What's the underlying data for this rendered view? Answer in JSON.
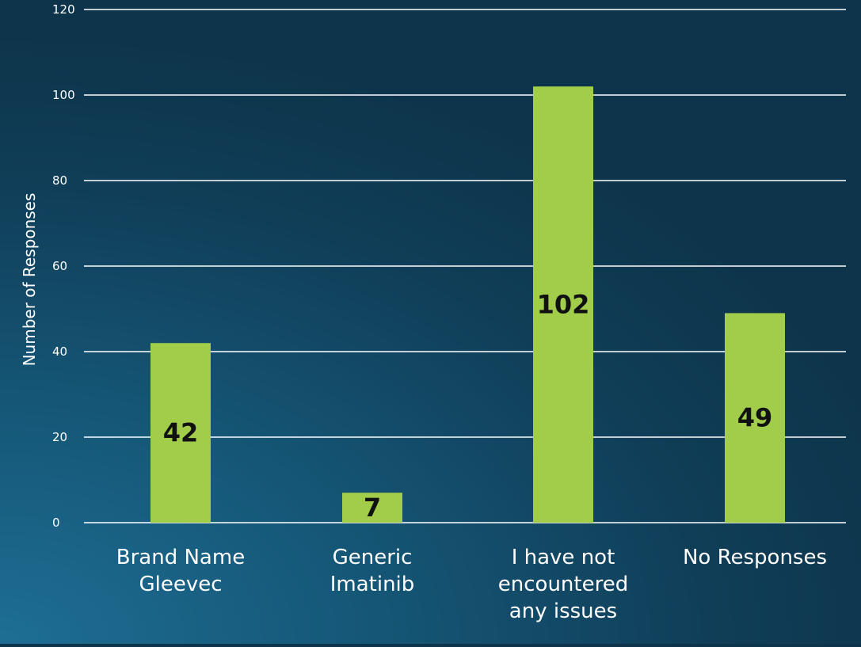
{
  "chart_data": {
    "type": "bar",
    "categories": [
      [
        "Brand Name",
        "Gleevec"
      ],
      [
        "Generic",
        "Imatinib"
      ],
      [
        "I have not",
        "encountered",
        "any issues"
      ],
      [
        "No Responses"
      ]
    ],
    "values": [
      42,
      7,
      102,
      49
    ],
    "data_labels": [
      "42",
      "7",
      "102",
      "49"
    ],
    "ylabel": "Number of Responses",
    "xlabel": "",
    "title": "",
    "ylim": [
      0,
      120
    ],
    "yticks": [
      0,
      20,
      40,
      60,
      80,
      100,
      120
    ],
    "grid": true,
    "legend": "none",
    "colors": {
      "bar": "#a2cd4a",
      "gridline": "#ffffff",
      "text": "#ffffff",
      "data_label": "#111111"
    }
  }
}
